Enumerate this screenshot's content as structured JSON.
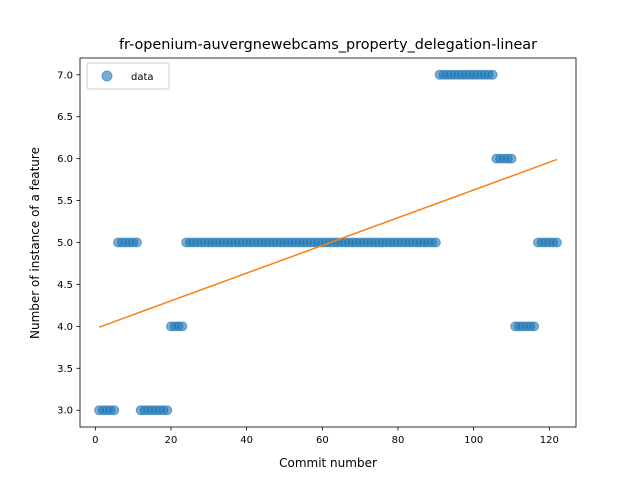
{
  "chart_data": {
    "type": "scatter",
    "title": "fr-openium-auvergnewebcams_property_delegation-linear",
    "xlabel": "Commit number",
    "ylabel": "Number of instance of a feature",
    "xlim": [
      -4.05,
      127.05
    ],
    "ylim": [
      2.8,
      7.2
    ],
    "xticks": [
      0,
      20,
      40,
      60,
      80,
      100,
      120
    ],
    "yticks": [
      3.0,
      3.5,
      4.0,
      4.5,
      5.0,
      5.5,
      6.0,
      6.5,
      7.0
    ],
    "legend": {
      "position": "top-left",
      "entries": [
        "data"
      ]
    },
    "grid": false,
    "colors": {
      "data": "#1f77b4",
      "fit": "#ff7f0e"
    },
    "series": [
      {
        "name": "data",
        "kind": "scatter",
        "x": [
          1,
          2,
          3,
          4,
          5,
          6,
          7,
          8,
          9,
          10,
          11,
          12,
          13,
          14,
          15,
          16,
          17,
          18,
          19,
          20,
          21,
          22,
          23,
          24,
          25,
          26,
          27,
          28,
          29,
          30,
          31,
          32,
          33,
          34,
          35,
          36,
          37,
          38,
          39,
          40,
          41,
          42,
          43,
          44,
          45,
          46,
          47,
          48,
          49,
          50,
          51,
          52,
          53,
          54,
          55,
          56,
          57,
          58,
          59,
          60,
          61,
          62,
          63,
          64,
          65,
          66,
          67,
          68,
          69,
          70,
          71,
          72,
          73,
          74,
          75,
          76,
          77,
          78,
          79,
          80,
          81,
          82,
          83,
          84,
          85,
          86,
          87,
          88,
          89,
          90,
          91,
          92,
          93,
          94,
          95,
          96,
          97,
          98,
          99,
          100,
          101,
          102,
          103,
          104,
          105,
          106,
          107,
          108,
          109,
          110,
          111,
          112,
          113,
          114,
          115,
          116,
          117,
          118,
          119,
          120,
          121,
          122
        ],
        "y": [
          3,
          3,
          3,
          3,
          3,
          5,
          5,
          5,
          5,
          5,
          5,
          3,
          3,
          3,
          3,
          3,
          3,
          3,
          3,
          4,
          4,
          4,
          4,
          5,
          5,
          5,
          5,
          5,
          5,
          5,
          5,
          5,
          5,
          5,
          5,
          5,
          5,
          5,
          5,
          5,
          5,
          5,
          5,
          5,
          5,
          5,
          5,
          5,
          5,
          5,
          5,
          5,
          5,
          5,
          5,
          5,
          5,
          5,
          5,
          5,
          5,
          5,
          5,
          5,
          5,
          5,
          5,
          5,
          5,
          5,
          5,
          5,
          5,
          5,
          5,
          5,
          5,
          5,
          5,
          5,
          5,
          5,
          5,
          5,
          5,
          5,
          5,
          5,
          5,
          5,
          7,
          7,
          7,
          7,
          7,
          7,
          7,
          7,
          7,
          7,
          7,
          7,
          7,
          7,
          7,
          6,
          6,
          6,
          6,
          6,
          4,
          4,
          4,
          4,
          4,
          4,
          5,
          5,
          5,
          5,
          5,
          5
        ]
      },
      {
        "name": "",
        "kind": "line",
        "x": [
          1,
          122
        ],
        "y": [
          3.99,
          5.99
        ]
      }
    ]
  }
}
